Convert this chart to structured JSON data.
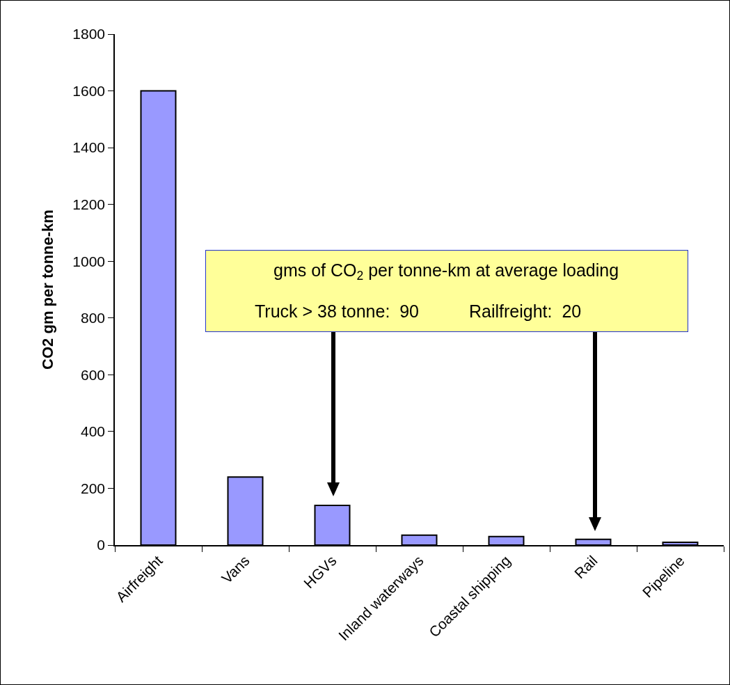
{
  "chart_data": {
    "type": "bar",
    "ylabel": "CO2 gm per tonne-km",
    "categories": [
      "Airfreight",
      "Vans",
      "HGVs",
      "Inland waterways",
      "Coastal shipping",
      "Rail",
      "Pipeline"
    ],
    "values": [
      1600,
      240,
      140,
      35,
      30,
      20,
      10
    ],
    "color": "#9999ff",
    "ylim": [
      0,
      1800
    ],
    "yticks": [
      0,
      200,
      400,
      600,
      800,
      1000,
      1200,
      1400,
      1600,
      1800
    ],
    "grid": false,
    "legend": false,
    "annotations": [
      "gms of CO$_{2}$ per tonne-km at average loading",
      "Truck > 38 tonne:  90",
      "Railfreight:  20"
    ]
  }
}
